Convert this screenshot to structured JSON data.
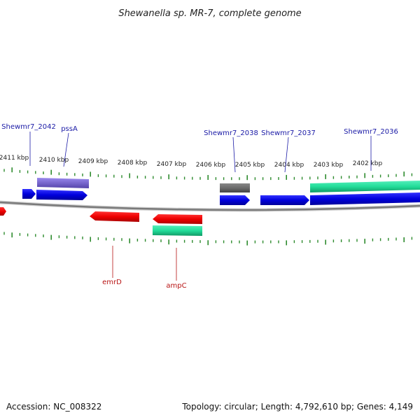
{
  "title": "Shewanella sp. MR-7, complete genome",
  "accession": "Accession: NC_008322",
  "summary": "Topology: circular; Length: 4,792,610 bp; Genes: 4,149",
  "colors": {
    "backbone": "#8a8a8a",
    "tick": "#2e8b2e",
    "label_forward": "#1a1aa6",
    "label_reverse": "#b81414",
    "blue": "#0000dd",
    "purple": "#7766cc",
    "gray": "#6b6b6b",
    "teal": "#22dd99",
    "red": "#ee0000"
  },
  "scale": {
    "unit": "kbp",
    "labels": [
      "2411 kbp",
      "2410 kbp",
      "2409 kbp",
      "2408 kbp",
      "2407 kbp",
      "2406 kbp",
      "2405 kbp",
      "2404 kbp",
      "2403 kbp",
      "2402 kbp"
    ]
  },
  "labels": {
    "forward": [
      "Shewmr7_2042",
      "pssA",
      "Shewmr7_2038",
      "Shewmr7_2037",
      "Shewmr7_2036"
    ],
    "reverse": [
      "emrD",
      "ampC"
    ]
  }
}
